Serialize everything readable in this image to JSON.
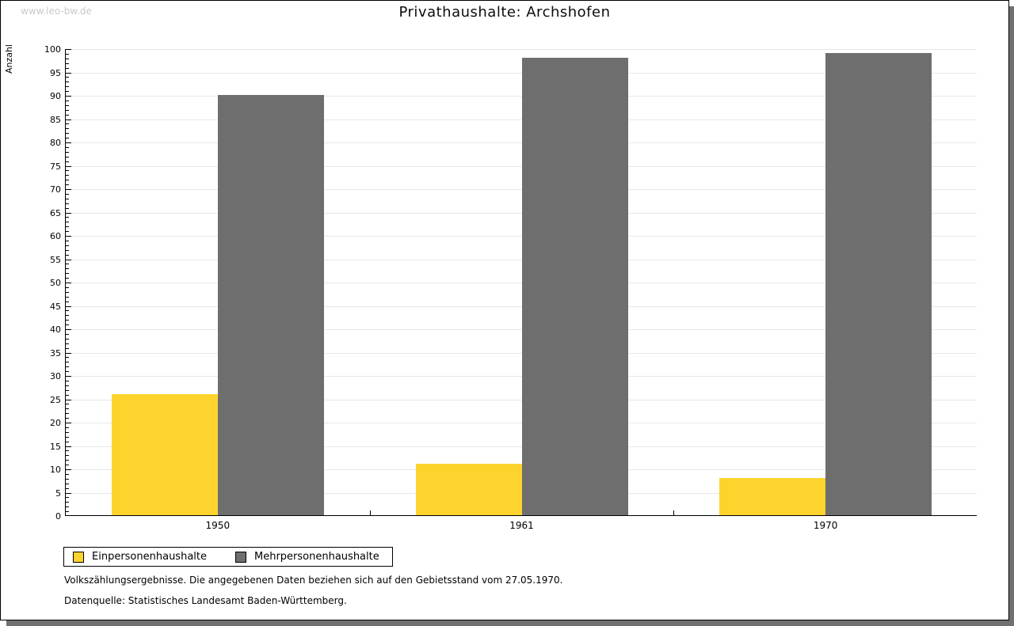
{
  "watermark": "www.leo-bw.de",
  "chart_data": {
    "type": "bar",
    "title": "Privathaushalte: Archshofen",
    "categories": [
      "1950",
      "1961",
      "1970"
    ],
    "series": [
      {
        "name": "Einpersonenhaushalte",
        "color": "#fdd42e",
        "values": [
          26,
          11,
          8
        ]
      },
      {
        "name": "Mehrpersonenhaushalte",
        "color": "#6e6e6e",
        "values": [
          90,
          98,
          99
        ]
      }
    ],
    "xlabel": "",
    "ylabel": "Anzahl",
    "ylim": [
      0,
      100
    ],
    "ytick_major": 5,
    "ytick_minor": 1,
    "grid": true,
    "legend_position": "bottom-left"
  },
  "footnotes": [
    "Volkszählungsergebnisse. Die angegebenen Daten beziehen sich auf den Gebietsstand vom 27.05.1970.",
    "Datenquelle: Statistisches Landesamt Baden-Württemberg."
  ]
}
